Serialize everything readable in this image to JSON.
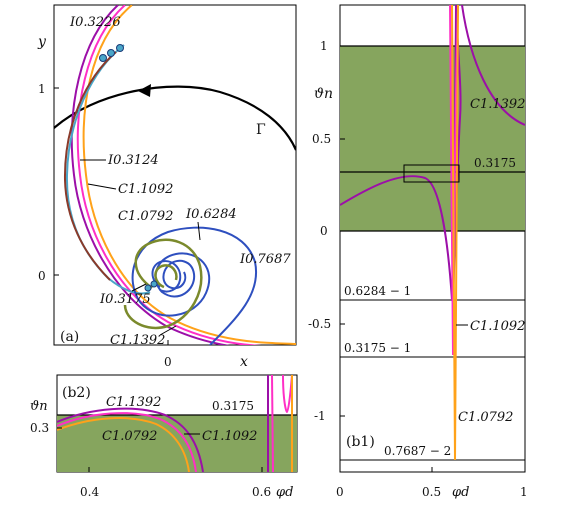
{
  "colors": {
    "green": "#86a55e",
    "magenta": "#9c0fa8",
    "pink": "#ff2fc6",
    "orange": "#ffa21a",
    "blue": "#2e4fbf",
    "olive": "#7b8a2c",
    "teal": "#4aa6c8",
    "black": "#000000"
  },
  "panels": {
    "a": {
      "tag": "(a)",
      "x_axis_label": "x",
      "y_axis_label": "y",
      "y_tick_labels": [
        "1",
        "0"
      ],
      "x_tick_labels": [
        "0"
      ],
      "curve_labels": {
        "gamma": "Γ",
        "I03226": "I0.3226",
        "I03124": "I0.3124",
        "C11092": "C1.1092",
        "C10792": "C1.0792",
        "I06284": "I0.6284",
        "I07687": "I0.7687",
        "I03175": "I0.3175",
        "C11392": "C1.1392"
      }
    },
    "b1": {
      "tag": "(b1)",
      "y_axis_label": "ϑn",
      "x_axis_label": "φd",
      "y_tick_labels": [
        "1",
        "0.5",
        "0",
        "-0.5",
        "-1"
      ],
      "x_tick_labels": [
        "0",
        "0.5",
        "1"
      ],
      "line_labels": {
        "l03175": "0.3175",
        "l06284": "0.6284 − 1",
        "l03175m": "0.3175 − 1",
        "l07687": "0.7687 − 2"
      },
      "curve_labels": {
        "C11392": "C1.1392",
        "C11092": "C1.1092",
        "C10792": "C1.0792"
      }
    },
    "b2": {
      "tag": "(b2)",
      "y_axis_label": "ϑn",
      "x_axis_label": "φd",
      "y_tick_labels": [
        "0.3"
      ],
      "x_tick_labels": [
        "0.4",
        "0.6"
      ],
      "line_label": "0.3175",
      "curve_labels": {
        "C11392": "C1.1392",
        "C10792": "C1.0792",
        "C11092": "C1.1092"
      }
    }
  }
}
